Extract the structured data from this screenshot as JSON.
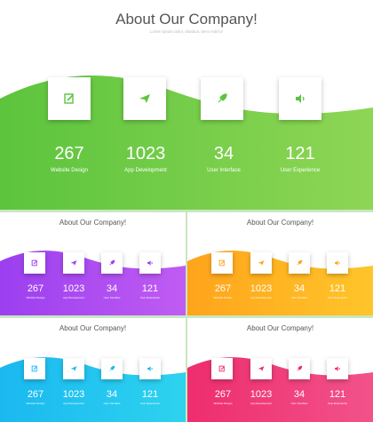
{
  "title": "About Our Company!",
  "subtitle": "Lorem ipsum dolor, disabuit, tiens estirror",
  "stats": [
    {
      "value": "267",
      "label": "Website Design",
      "icon": "edit-icon"
    },
    {
      "value": "1023",
      "label": "App Development",
      "icon": "paper-plane-icon"
    },
    {
      "value": "34",
      "label": "User Interface",
      "icon": "rocket-icon"
    },
    {
      "value": "121",
      "label": "User Experience",
      "icon": "speaker-icon"
    }
  ],
  "themes": [
    {
      "name": "green",
      "wave": "#5cc43d",
      "wave_light": "#8ed655"
    },
    {
      "name": "purple",
      "wave": "#9b3ff0",
      "wave_light": "#c05cf2"
    },
    {
      "name": "orange",
      "wave": "#ffa41b",
      "wave_light": "#ffc52a"
    },
    {
      "name": "blue",
      "wave": "#1ab8f0",
      "wave_light": "#2ed3ef"
    },
    {
      "name": "pink",
      "wave": "#ee2d6e",
      "wave_light": "#f2528a"
    }
  ]
}
